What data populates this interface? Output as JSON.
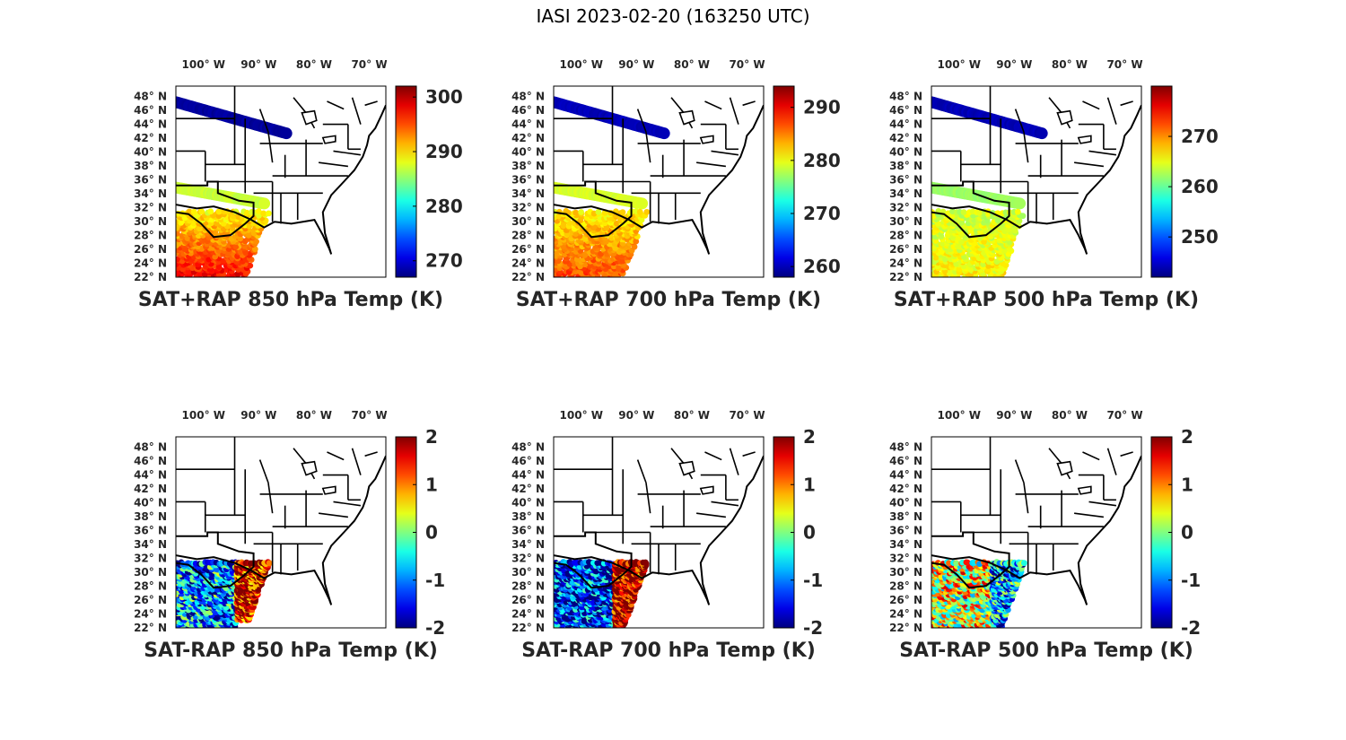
{
  "title": "IASI 2023-02-20 (163250 UTC)",
  "colors": {
    "colormap": "jet",
    "map_lines": "#000000",
    "text": "#262626",
    "background": "#ffffff"
  },
  "chart_data": [
    {
      "type": "scatter",
      "title": "SAT+RAP 850 hPa Temp (K)",
      "lon_labels": [
        "100° W",
        "90° W",
        "80° W",
        "70° W"
      ],
      "lon_values": [
        -100,
        -90,
        -80,
        -70
      ],
      "lat_labels": [
        "48° N",
        "46° N",
        "44° N",
        "42° N",
        "40° N",
        "38° N",
        "36° N",
        "34° N",
        "32° N",
        "30° N",
        "28° N",
        "26° N",
        "24° N",
        "22° N"
      ],
      "lat_values": [
        48,
        46,
        44,
        42,
        40,
        38,
        36,
        34,
        32,
        30,
        28,
        26,
        24,
        22
      ],
      "xlim": [
        -105,
        -67
      ],
      "ylim": [
        22,
        49.5
      ],
      "colorbar": {
        "label": "",
        "clim": [
          267,
          302
        ],
        "ticks": [
          270,
          280,
          290,
          300
        ]
      },
      "swaths": [
        {
          "name": "northern swath",
          "lon_range": [
            -105,
            -85
          ],
          "lat_start": 46.8,
          "lat_end": 42.3,
          "value": 268
        },
        {
          "name": "central swath",
          "lon_range": [
            -105,
            -89
          ],
          "lat_start": 34.5,
          "lat_end": 32.2,
          "value": 287
        },
        {
          "name": "southern swath",
          "lon_range": [
            -105,
            -88
          ],
          "lat_range": [
            22,
            31.5
          ],
          "value_north": 289,
          "value_south": 298
        }
      ]
    },
    {
      "type": "scatter",
      "title": "SAT+RAP 700 hPa Temp (K)",
      "lon_labels": [
        "100° W",
        "90° W",
        "80° W",
        "70° W"
      ],
      "lon_values": [
        -100,
        -90,
        -80,
        -70
      ],
      "lat_labels": [
        "48° N",
        "46° N",
        "44° N",
        "42° N",
        "40° N",
        "38° N",
        "36° N",
        "34° N",
        "32° N",
        "30° N",
        "28° N",
        "26° N",
        "24° N",
        "22° N"
      ],
      "lat_values": [
        48,
        46,
        44,
        42,
        40,
        38,
        36,
        34,
        32,
        30,
        28,
        26,
        24,
        22
      ],
      "xlim": [
        -105,
        -67
      ],
      "ylim": [
        22,
        49.5
      ],
      "colorbar": {
        "label": "",
        "clim": [
          258,
          294
        ],
        "ticks": [
          260,
          270,
          280,
          290
        ]
      },
      "swaths": [
        {
          "name": "northern swath",
          "lon_range": [
            -105,
            -85
          ],
          "lat_start": 46.8,
          "lat_end": 42.3,
          "value": 260
        },
        {
          "name": "central swath",
          "lon_range": [
            -105,
            -89
          ],
          "lat_start": 34.5,
          "lat_end": 32.2,
          "value": 279
        },
        {
          "name": "southern swath",
          "lon_range": [
            -105,
            -88
          ],
          "lat_range": [
            22,
            31.5
          ],
          "value_north": 281,
          "value_south": 287
        }
      ]
    },
    {
      "type": "scatter",
      "title": "SAT+RAP 500 hPa Temp (K)",
      "lon_labels": [
        "100° W",
        "90° W",
        "80° W",
        "70° W"
      ],
      "lon_values": [
        -100,
        -90,
        -80,
        -70
      ],
      "lat_labels": [
        "48° N",
        "46° N",
        "44° N",
        "42° N",
        "40° N",
        "38° N",
        "36° N",
        "34° N",
        "32° N",
        "30° N",
        "28° N",
        "26° N",
        "24° N",
        "22° N"
      ],
      "lat_values": [
        48,
        46,
        44,
        42,
        40,
        38,
        36,
        34,
        32,
        30,
        28,
        26,
        24,
        22
      ],
      "xlim": [
        -105,
        -67
      ],
      "ylim": [
        22,
        49.5
      ],
      "colorbar": {
        "label": "",
        "clim": [
          242,
          280
        ],
        "ticks": [
          250,
          260,
          270
        ]
      },
      "swaths": [
        {
          "name": "northern swath",
          "lon_range": [
            -105,
            -85
          ],
          "lat_start": 46.8,
          "lat_end": 42.3,
          "value": 244
        },
        {
          "name": "central swath",
          "lon_range": [
            -105,
            -89
          ],
          "lat_start": 34.5,
          "lat_end": 32.2,
          "value": 262
        },
        {
          "name": "southern swath",
          "lon_range": [
            -105,
            -88
          ],
          "lat_range": [
            22,
            31.5
          ],
          "value_north": 264,
          "value_south": 266
        }
      ]
    },
    {
      "type": "scatter",
      "title": "SAT-RAP 850 hPa Temp (K)",
      "lon_labels": [
        "100° W",
        "90° W",
        "80° W",
        "70° W"
      ],
      "lon_values": [
        -100,
        -90,
        -80,
        -70
      ],
      "lat_labels": [
        "48° N",
        "46° N",
        "44° N",
        "42° N",
        "40° N",
        "38° N",
        "36° N",
        "34° N",
        "32° N",
        "30° N",
        "28° N",
        "26° N",
        "24° N",
        "22° N"
      ],
      "lat_values": [
        48,
        46,
        44,
        42,
        40,
        38,
        36,
        34,
        32,
        30,
        28,
        26,
        24,
        22
      ],
      "xlim": [
        -105,
        -67
      ],
      "ylim": [
        22,
        49.5
      ],
      "colorbar": {
        "label": "",
        "clim": [
          -2,
          2
        ],
        "ticks": [
          2,
          1,
          0,
          -1,
          -2
        ]
      },
      "swaths": [
        {
          "name": "southern swath west",
          "lon_range": [
            -105,
            -94
          ],
          "lat_range": [
            22,
            31.5
          ],
          "value": -0.9
        },
        {
          "name": "southern swath east",
          "lon_range": [
            -94,
            -88
          ],
          "lat_range": [
            23,
            31.5
          ],
          "value": 1.7
        }
      ]
    },
    {
      "type": "scatter",
      "title": "SAT-RAP 700 hPa Temp (K)",
      "lon_labels": [
        "100° W",
        "90° W",
        "80° W",
        "70° W"
      ],
      "lon_values": [
        -100,
        -90,
        -80,
        -70
      ],
      "lat_labels": [
        "48° N",
        "46° N",
        "44° N",
        "42° N",
        "40° N",
        "38° N",
        "36° N",
        "34° N",
        "32° N",
        "30° N",
        "28° N",
        "26° N",
        "24° N",
        "22° N"
      ],
      "lat_values": [
        48,
        46,
        44,
        42,
        40,
        38,
        36,
        34,
        32,
        30,
        28,
        26,
        24,
        22
      ],
      "xlim": [
        -105,
        -67
      ],
      "ylim": [
        22,
        49.5
      ],
      "colorbar": {
        "label": "",
        "clim": [
          -2,
          2
        ],
        "ticks": [
          2,
          1,
          0,
          -1,
          -2
        ]
      },
      "swaths": [
        {
          "name": "southern swath west",
          "lon_range": [
            -105,
            -94
          ],
          "lat_range": [
            22,
            31.5
          ],
          "value": -1.4
        },
        {
          "name": "southern swath east",
          "lon_range": [
            -94,
            -88
          ],
          "lat_range": [
            22,
            31.5
          ],
          "value": 2
        }
      ]
    },
    {
      "type": "scatter",
      "title": "SAT-RAP 500 hPa Temp (K)",
      "lon_labels": [
        "100° W",
        "90° W",
        "80° W",
        "70° W"
      ],
      "lon_values": [
        -100,
        -90,
        -80,
        -70
      ],
      "lat_labels": [
        "48° N",
        "46° N",
        "44° N",
        "42° N",
        "40° N",
        "38° N",
        "36° N",
        "34° N",
        "32° N",
        "30° N",
        "28° N",
        "26° N",
        "24° N",
        "22° N"
      ],
      "lat_values": [
        48,
        46,
        44,
        42,
        40,
        38,
        36,
        34,
        32,
        30,
        28,
        26,
        24,
        22
      ],
      "xlim": [
        -105,
        -67
      ],
      "ylim": [
        22,
        49.5
      ],
      "colorbar": {
        "label": "",
        "clim": [
          -2,
          2
        ],
        "ticks": [
          2,
          1,
          0,
          -1,
          -2
        ]
      },
      "swaths": [
        {
          "name": "southern swath west",
          "lon_range": [
            -105,
            -94
          ],
          "lat_range": [
            22,
            31.5
          ],
          "value": 0.4
        },
        {
          "name": "southern swath east",
          "lon_range": [
            -94,
            -88
          ],
          "lat_range": [
            22,
            31.5
          ],
          "value": -0.9
        }
      ]
    }
  ]
}
